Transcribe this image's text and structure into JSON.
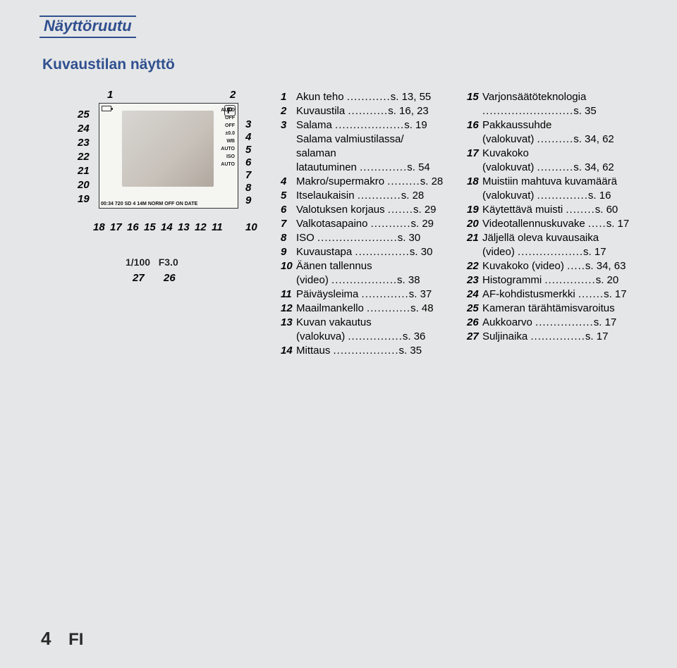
{
  "title": "Näyttöruutu",
  "subtitle": "Kuvaustilan näyttö",
  "diagram": {
    "top_left_num": "1",
    "top_right_num": "2",
    "left_nums": [
      "25",
      "24",
      "23",
      "22",
      "21",
      "20",
      "19"
    ],
    "right_nums": [
      "3",
      "4",
      "5",
      "6",
      "7",
      "8",
      "9"
    ],
    "bottom_nums_left": [
      "18",
      "17",
      "16",
      "15",
      "14",
      "13",
      "12",
      "11"
    ],
    "bottom_nums_right": [
      "10"
    ],
    "below_nums": [
      "27",
      "26"
    ],
    "shutter": "1/100",
    "aperture": "F3.0",
    "info_col": [
      "AUTO",
      "OFF",
      "OFF",
      "±0.0",
      "WB AUTO",
      "ISO AUTO"
    ],
    "bottom_info": [
      "00:34",
      "720",
      "SD",
      "4",
      "14M",
      "NORM",
      "OFF",
      "ON",
      "DATE"
    ],
    "mode": "P"
  },
  "colA": [
    {
      "n": "1",
      "t": "Akun teho",
      "p": "s. 13, 55"
    },
    {
      "n": "2",
      "t": "Kuvaustila",
      "p": "s. 16, 23"
    },
    {
      "n": "3",
      "t": "Salama",
      "p": "s. 19"
    },
    {
      "cont": true,
      "t": "Salama valmiustilassa/"
    },
    {
      "cont": true,
      "t": "salaman"
    },
    {
      "cont": true,
      "t": "latautuminen",
      "p": "s. 54"
    },
    {
      "n": "4",
      "t": "Makro/supermakro",
      "p": "s. 28"
    },
    {
      "n": "5",
      "t": "Itselaukaisin",
      "p": "s. 28"
    },
    {
      "n": "6",
      "t": "Valotuksen korjaus",
      "p": "s. 29"
    },
    {
      "n": "7",
      "t": "Valkotasapaino",
      "p": "s. 29"
    },
    {
      "n": "8",
      "t": "ISO",
      "p": "s. 30"
    },
    {
      "n": "9",
      "t": "Kuvaustapa",
      "p": "s. 30"
    },
    {
      "n": "10",
      "t": "Äänen tallennus"
    },
    {
      "cont": true,
      "t": "(video)",
      "p": "s. 38"
    },
    {
      "n": "11",
      "t": "Päiväysleima",
      "p": "s. 37"
    },
    {
      "n": "12",
      "t": "Maailmankello",
      "p": "s. 48"
    },
    {
      "n": "13",
      "t": "Kuvan vakautus"
    },
    {
      "cont": true,
      "t": "(valokuva)",
      "p": "s. 36"
    },
    {
      "n": "14",
      "t": "Mittaus",
      "p": "s. 35"
    }
  ],
  "colB": [
    {
      "n": "15",
      "t": "Varjonsäätöteknologia"
    },
    {
      "cont": true,
      "t": "",
      "p": "s. 35"
    },
    {
      "n": "16",
      "t": "Pakkaussuhde"
    },
    {
      "cont": true,
      "t": "(valokuvat)",
      "p": "s. 34, 62"
    },
    {
      "n": "17",
      "t": "Kuvakoko"
    },
    {
      "cont": true,
      "t": "(valokuvat)",
      "p": "s. 34, 62"
    },
    {
      "n": "18",
      "t": "Muistiin mahtuva kuvamäärä"
    },
    {
      "cont": true,
      "t": "(valokuvat)",
      "p": "s. 16"
    },
    {
      "n": "19",
      "t": "Käytettävä muisti",
      "p": "s. 60"
    },
    {
      "n": "20",
      "t": "Videotallennuskuvake",
      "p": "s. 17"
    },
    {
      "n": "21",
      "t": "Jäljellä oleva kuvausaika"
    },
    {
      "cont": true,
      "t": "(video)",
      "p": "s. 17"
    },
    {
      "n": "22",
      "t": "Kuvakoko (video)",
      "p": "s. 34, 63"
    },
    {
      "n": "23",
      "t": "Histogrammi",
      "p": "s. 20"
    },
    {
      "n": "24",
      "t": "AF-kohdistusmerkki",
      "p": "s. 17"
    },
    {
      "n": "25",
      "t": "Kameran tärähtämisvaroitus"
    },
    {
      "n": "26",
      "t": "Aukkoarvo",
      "p": "s. 17"
    },
    {
      "n": "27",
      "t": "Suljinaika",
      "p": "s. 17"
    }
  ],
  "footer": {
    "page": "4",
    "lang": "FI"
  }
}
